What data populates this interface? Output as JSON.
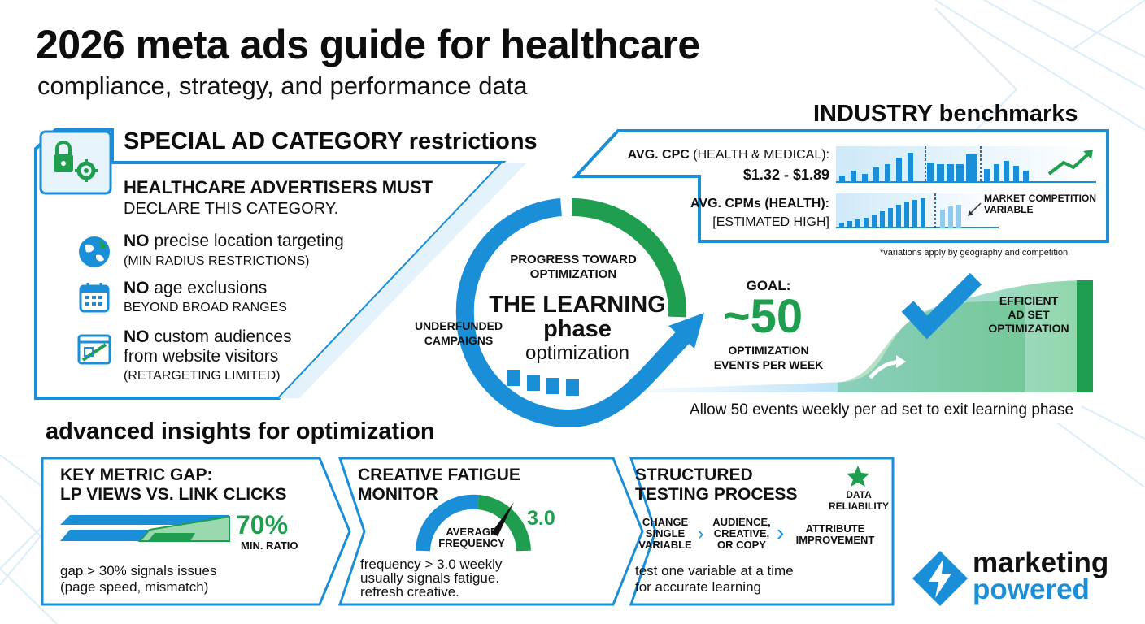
{
  "header": {
    "title": "2026 meta ads guide for healthcare",
    "subtitle": "compliance, strategy, and performance data"
  },
  "restrictions": {
    "heading": "SPECIAL AD CATEGORY restrictions",
    "intro_line1": "HEALTHCARE ADVERTISERS MUST",
    "intro_line2": "DECLARE THIS CATEGORY.",
    "items": [
      {
        "icon": "globe-location-icon",
        "strong": "NO",
        "text": " precise location targeting",
        "sub": "(MIN RADIUS RESTRICTIONS)"
      },
      {
        "icon": "calendar-icon",
        "strong": "NO",
        "text": " age exclusions",
        "sub": "BEYOND BROAD RANGES"
      },
      {
        "icon": "blocked-website-icon",
        "strong": "NO",
        "text": " custom audiences",
        "text2": "from website visitors",
        "sub": "(RETARGETING LIMITED)"
      }
    ]
  },
  "benchmarks": {
    "heading": "INDUSTRY benchmarks",
    "cpc_label_bold": "AVG. CPC",
    "cpc_label_rest": " (HEALTH & MEDICAL):",
    "cpc_value": "$1.32 - $1.89",
    "cpm_label": "AVG. CPMs (HEALTH):",
    "cpm_value": "[ESTIMATED HIGH]",
    "competition_line1": "MARKET COMPETITION",
    "competition_line2": "VARIABLE",
    "footnote": "*variations apply by geography and competition"
  },
  "learning": {
    "progress_line1": "PROGRESS TOWARD",
    "progress_line2": "OPTIMIZATION",
    "title_line1": "THE LEARNING",
    "title_line2": "phase",
    "title_line3": "optimization",
    "underfunded_line1": "UNDERFUNDED",
    "underfunded_line2": "CAMPAIGNS",
    "goal_label": "GOAL:",
    "goal_value": "~50",
    "goal_sub1": "OPTIMIZATION",
    "goal_sub2": "EVENTS PER WEEK",
    "efficient_line1": "EFFICIENT",
    "efficient_line2": "AD SET",
    "efficient_line3": "OPTIMIZATION",
    "caption": "Allow 50 events weekly per ad set to exit learning phase"
  },
  "insights": {
    "heading": "advanced insights for optimization",
    "card1": {
      "title1": "KEY METRIC GAP:",
      "title2": "LP VIEWS VS. LINK CLICKS",
      "percent": "70%",
      "percent_label": "MIN. RATIO",
      "body1": "gap > 30% signals issues",
      "body2": "(page speed, mismatch)"
    },
    "card2": {
      "title1": "CREATIVE FATIGUE",
      "title2": "MONITOR",
      "gauge_label1": "AVERAGE",
      "gauge_label2": "FREQUENCY",
      "gauge_value": "3.0",
      "body1": "frequency > 3.0 weekly",
      "body2": "usually signals fatigue.",
      "body3": "refresh creative."
    },
    "card3": {
      "title1": "STRUCTURED",
      "title2": "TESTING PROCESS",
      "reliability1": "DATA",
      "reliability2": "RELIABILITY",
      "step1a": "CHANGE",
      "step1b": "SINGLE",
      "step1c": "VARIABLE",
      "step2a": "AUDIENCE,",
      "step2b": "CREATIVE,",
      "step2c": "OR COPY",
      "step3a": "ATTRIBUTE",
      "step3b": "IMPROVEMENT",
      "body1": "test one variable at a time",
      "body2": "for accurate learning"
    }
  },
  "brand": {
    "line1": "marketing",
    "line2": "powered"
  },
  "colors": {
    "accent_blue": "#1a8fd8",
    "accent_green": "#1f9e4f",
    "light_green": "#9ad9b0",
    "text": "#111111"
  }
}
